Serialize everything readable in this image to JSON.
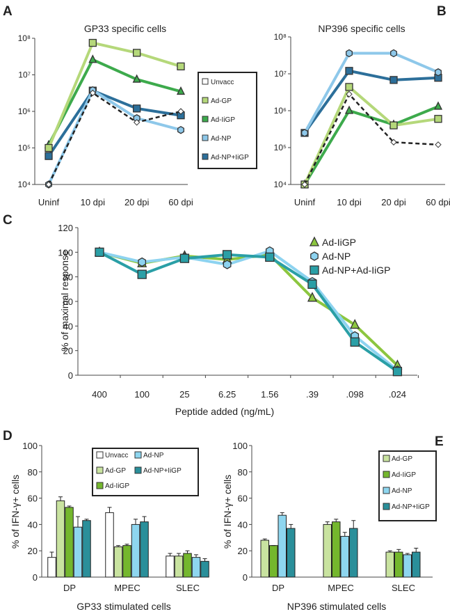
{
  "colors": {
    "Unvacc": "#ffffff",
    "Ad-GP": "#b5d87a",
    "Ad-IiGP": "#3daa4c",
    "Ad-NP": "#8ec8ea",
    "Ad-NP+IiGP": "#2c6f9a",
    "C_Ad-IiGP": "#8cc63f",
    "C_Ad-NP": "#8dd3f0",
    "C_Ad-NP+Ad-IiGP": "#2a9fa6",
    "D_Ad-GP": "#c9e3a0",
    "D_Ad-IiGP": "#74b72d",
    "D_Ad-NP": "#8ed6ef",
    "D_Ad-NP+IiGP": "#2a8f9a"
  },
  "panels": {
    "A": "A",
    "B": "B",
    "C": "C",
    "D": "D",
    "E": "E"
  },
  "chart_data": [
    {
      "id": "A",
      "type": "line",
      "title": "GP33 specific cells",
      "categories": [
        "Uninf",
        "10 dpi",
        "20 dpi",
        "60 dpi"
      ],
      "yscale": "log",
      "ylim": [
        10000,
        100000000
      ],
      "yticks": [
        "10⁴",
        "10⁵",
        "10⁶",
        "10⁷",
        "10⁸"
      ],
      "legend": [
        "Unvacc",
        "Ad-GP",
        "Ad-IiGP",
        "Ad-NP",
        "Ad-NP+IiGP"
      ],
      "series": [
        {
          "name": "Unvacc",
          "values": [
            10000,
            3200000,
            500000,
            1000000
          ]
        },
        {
          "name": "Ad-GP",
          "values": [
            100000,
            75000000,
            40000000,
            17000000
          ]
        },
        {
          "name": "Ad-IiGP",
          "values": [
            120000,
            26000000,
            7500000,
            3500000
          ]
        },
        {
          "name": "Ad-NP",
          "values": [
            10000,
            3800000,
            650000,
            310000
          ]
        },
        {
          "name": "Ad-NP+IiGP",
          "values": [
            60000,
            3700000,
            1200000,
            780000
          ]
        }
      ]
    },
    {
      "id": "B",
      "type": "line",
      "title": "NP396 specific cells",
      "categories": [
        "Uninf",
        "10 dpi",
        "20 dpi",
        "60 dpi"
      ],
      "yscale": "log",
      "ylim": [
        10000,
        100000000
      ],
      "yticks": [
        "10⁴",
        "10⁵",
        "10⁶",
        "10⁷",
        "10⁸"
      ],
      "series": [
        {
          "name": "Unvacc",
          "values": [
            10000,
            2800000,
            140000,
            120000
          ]
        },
        {
          "name": "Ad-GP",
          "values": [
            10000,
            4400000,
            400000,
            600000
          ]
        },
        {
          "name": "Ad-IiGP",
          "values": [
            10000,
            1000000,
            420000,
            1300000
          ]
        },
        {
          "name": "Ad-NP",
          "values": [
            250000,
            36000000,
            36000000,
            11000000
          ]
        },
        {
          "name": "Ad-NP+IiGP",
          "values": [
            250000,
            12000000,
            6800000,
            7800000
          ]
        }
      ]
    },
    {
      "id": "C",
      "type": "line",
      "categories": [
        "400",
        "100",
        "25",
        "6.25",
        "1.56",
        ".39",
        ".098",
        ".024"
      ],
      "xlabel": "Peptide added (ng/mL)",
      "ylabel": "% of maximal response",
      "ylim": [
        0,
        120
      ],
      "yticks": [
        "0",
        "20",
        "40",
        "60",
        "80",
        "100",
        "120"
      ],
      "legend": [
        "Ad-IiGP",
        "Ad-NP",
        "Ad-NP+Ad-IiGP"
      ],
      "series": [
        {
          "name": "Ad-IiGP",
          "values": [
            100,
            91,
            97,
            94,
            98,
            63,
            41,
            8
          ]
        },
        {
          "name": "Ad-NP",
          "values": [
            100,
            92,
            96,
            90,
            101,
            76,
            32,
            4
          ]
        },
        {
          "name": "Ad-NP+Ad-IiGP",
          "values": [
            100,
            82,
            95,
            98,
            96,
            74,
            27,
            3
          ]
        }
      ]
    },
    {
      "id": "D",
      "type": "bar",
      "categories": [
        "DP",
        "MPEC",
        "SLEC"
      ],
      "xlabel": "GP33 stimulated cells",
      "ylabel": "% of IFN-γ+ cells",
      "ylim": [
        0,
        100
      ],
      "yticks": [
        "0",
        "20",
        "40",
        "60",
        "80",
        "100"
      ],
      "legend": [
        "Unvacc",
        "Ad-NP",
        "Ad-GP",
        "Ad-NP+IiGP",
        "Ad-IiGP"
      ],
      "series": [
        {
          "name": "Unvacc",
          "values": [
            15,
            49,
            16
          ],
          "errors": [
            4,
            4,
            2
          ]
        },
        {
          "name": "Ad-GP",
          "values": [
            58,
            23,
            16
          ],
          "errors": [
            3,
            1,
            2
          ]
        },
        {
          "name": "Ad-IiGP",
          "values": [
            53,
            24,
            18
          ],
          "errors": [
            1,
            1,
            2
          ]
        },
        {
          "name": "Ad-NP",
          "values": [
            38,
            40,
            15
          ],
          "errors": [
            8,
            4,
            2
          ]
        },
        {
          "name": "Ad-NP+IiGP",
          "values": [
            43,
            42,
            12
          ],
          "errors": [
            1,
            4,
            2
          ]
        }
      ]
    },
    {
      "id": "E",
      "type": "bar",
      "categories": [
        "DP",
        "MPEC",
        "SLEC"
      ],
      "xlabel": "NP396 stimulated cells",
      "ylabel": "% of IFN-γ+ cells",
      "ylim": [
        0,
        100
      ],
      "yticks": [
        "0",
        "20",
        "40",
        "60",
        "80",
        "100"
      ],
      "legend": [
        "Ad-GP",
        "Ad-IiGP",
        "Ad-NP",
        "Ad-NP+IiGP"
      ],
      "series": [
        {
          "name": "Ad-GP",
          "values": [
            28,
            40,
            19
          ],
          "errors": [
            1,
            2,
            1
          ]
        },
        {
          "name": "Ad-IiGP",
          "values": [
            24,
            42,
            19
          ],
          "errors": [
            0,
            2,
            2
          ]
        },
        {
          "name": "Ad-NP",
          "values": [
            47,
            31,
            17
          ],
          "errors": [
            2,
            3,
            1
          ]
        },
        {
          "name": "Ad-NP+IiGP",
          "values": [
            37,
            37,
            19
          ],
          "errors": [
            3,
            6,
            3
          ]
        }
      ]
    }
  ]
}
